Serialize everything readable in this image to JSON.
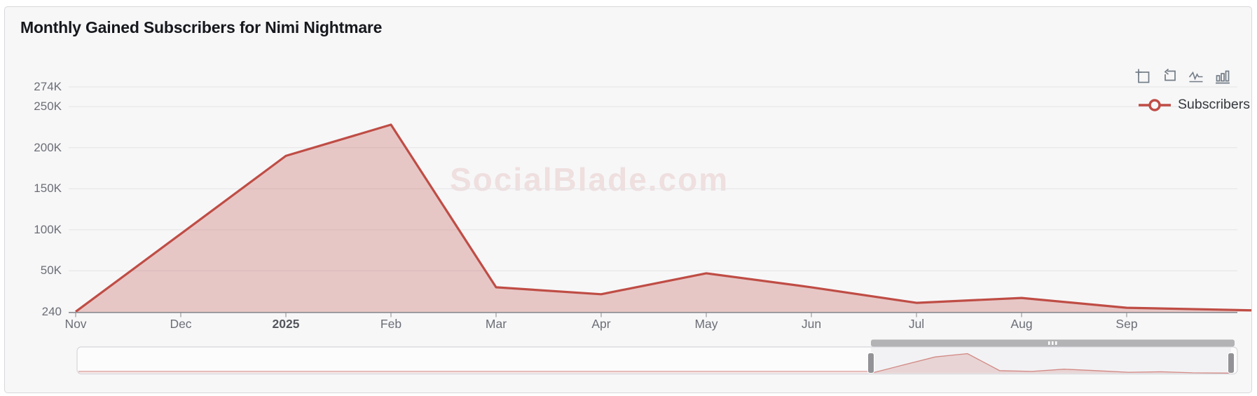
{
  "card": {
    "title": "Monthly Gained Subscribers for Nimi Nightmare"
  },
  "watermark": {
    "text": "SocialBlade.com"
  },
  "toolbar": {
    "icons": [
      {
        "name": "selection-zoom-icon"
      },
      {
        "name": "reset-zoom-icon"
      },
      {
        "name": "line-chart-toggle-icon"
      },
      {
        "name": "bar-chart-toggle-icon"
      }
    ]
  },
  "legend": {
    "position": "top-right",
    "items": [
      {
        "label": "Subscribers",
        "color": "#bf4d45"
      }
    ]
  },
  "chart_data": {
    "type": "area",
    "title": "Monthly Gained Subscribers for Nimi Nightmare",
    "categories": [
      "Nov",
      "Dec",
      "2025",
      "Feb",
      "Mar",
      "Apr",
      "May",
      "Jun",
      "Jul",
      "Aug",
      "Sep"
    ],
    "emphasized_category": "2025",
    "series": [
      {
        "name": "Subscribers",
        "values": [
          240,
          95000,
          190000,
          228000,
          30000,
          21500,
          47000,
          30000,
          11000,
          17000,
          5000
        ],
        "partial_next_value": 2000,
        "line_color": "#bf4d45",
        "fill_color": "rgba(191,77,69,0.28)"
      }
    ],
    "y_ticks": [
      {
        "label": "274K",
        "value": 274000
      },
      {
        "label": "250K",
        "value": 250000
      },
      {
        "label": "200K",
        "value": 200000
      },
      {
        "label": "150K",
        "value": 150000
      },
      {
        "label": "100K",
        "value": 100000
      },
      {
        "label": "50K",
        "value": 50000
      },
      {
        "label": "240",
        "value": 240
      }
    ],
    "ylim": [
      240,
      274000
    ],
    "grid": "horizontal-only",
    "legend_position": "top-right",
    "brush": {
      "selected_range": [
        "Nov",
        "Oct (partial)"
      ],
      "unselected_history": "flat-near-zero"
    }
  }
}
